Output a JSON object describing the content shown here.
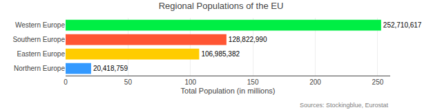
{
  "chart_data": {
    "type": "bar",
    "orientation": "horizontal",
    "title": "Regional Populations of the EU",
    "categories": [
      "Western Europe",
      "Southern Europe",
      "Eastern Europe",
      "Northern Europe"
    ],
    "values": [
      252710617,
      128822990,
      106985382,
      20418759
    ],
    "value_labels": [
      "252,710,617",
      "128,822,990",
      "106,985,382",
      "20,418,759"
    ],
    "data_labels": true,
    "colors": [
      "#00ee44",
      "#ff5533",
      "#ffcc00",
      "#3399ff"
    ],
    "xlabel": "Total Population (in millions)",
    "xlim": [
      0,
      260000000
    ],
    "xticks": [
      0,
      {
        "value": 50000000,
        "label": "50"
      },
      {
        "value": 100000000,
        "label": "100"
      },
      {
        "value": 150000000,
        "label": "150"
      },
      {
        "value": 200000000,
        "label": "200"
      },
      {
        "value": 250000000,
        "label": "250"
      }
    ],
    "grid": true,
    "annotations": [
      "Sources: Stockingblue, Eurostat"
    ]
  }
}
